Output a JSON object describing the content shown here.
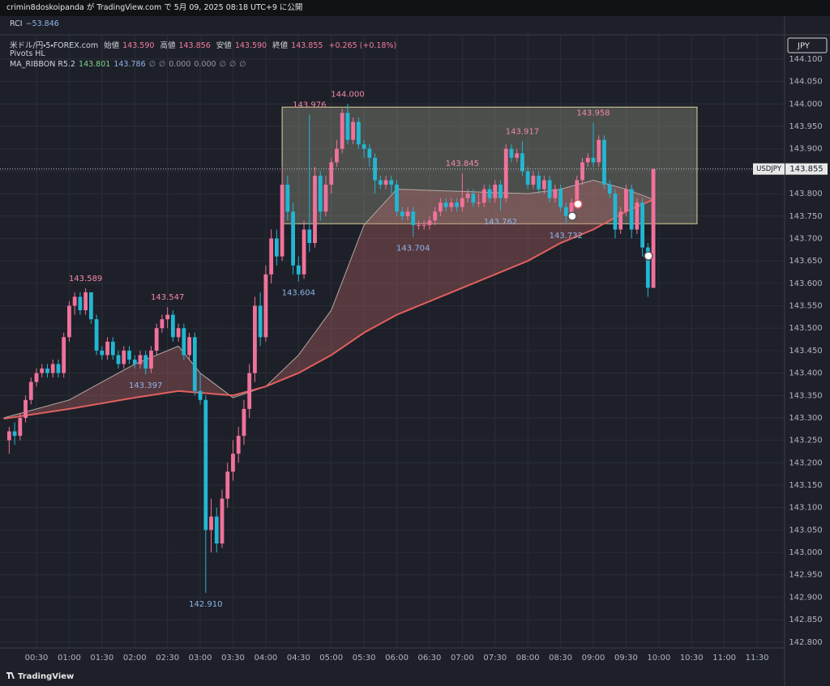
{
  "header": {
    "publisher_line": "crimin8doskoipanda が TradingView.com で 5月 09, 2025 08:18 UTC+9 に公開"
  },
  "legend": {
    "rci_name": "RCI",
    "rci_value": "−53.846",
    "symbol": "米ドル/円・5・FOREX.com",
    "o_label": "始値",
    "o": "143.590",
    "h_label": "高値",
    "h": "143.856",
    "l_label": "安値",
    "l": "143.590",
    "c_label": "終値",
    "c": "143.855",
    "change": "+0.265 (+0.18%)",
    "pivots": "Pivots HL",
    "ribbon": "MA_RIBBON R5.2",
    "ribbon_values": [
      "143.801",
      "143.786",
      "∅",
      "∅",
      "0.000",
      "0.000",
      "∅",
      "∅",
      "∅"
    ]
  },
  "footer": {
    "brand": "TradingView"
  },
  "chart_data": {
    "type": "candlestick",
    "currency": "JPY",
    "symbol": "USDJPY",
    "up_color": "#f0729b",
    "down_color": "#22b7d3",
    "grid": true,
    "xlim": [
      "00:00",
      "11:50"
    ],
    "ylim": [
      142.787,
      144.156
    ],
    "xticks": [
      "00:30",
      "01:00",
      "01:30",
      "02:00",
      "02:30",
      "03:00",
      "03:30",
      "04:00",
      "04:30",
      "05:00",
      "05:30",
      "06:00",
      "06:30",
      "07:00",
      "07:30",
      "08:00",
      "08:30",
      "09:00",
      "09:30",
      "10:00",
      "10:30",
      "11:00",
      "11:30"
    ],
    "yticks": [
      {
        "value": 144.1,
        "label": "144.100"
      },
      {
        "value": 144.05,
        "label": "144.050"
      },
      {
        "value": 144,
        "label": "144.000"
      },
      {
        "value": 143.95,
        "label": "143.950"
      },
      {
        "value": 143.9,
        "label": "143.900"
      },
      {
        "value": 143.85,
        "label": "143.850"
      },
      {
        "value": 143.8,
        "label": "143.800"
      },
      {
        "value": 143.75,
        "label": "143.750"
      },
      {
        "value": 143.7,
        "label": "143.700"
      },
      {
        "value": 143.65,
        "label": "143.650"
      },
      {
        "value": 143.6,
        "label": "143.600"
      },
      {
        "value": 143.55,
        "label": "143.550"
      },
      {
        "value": 143.5,
        "label": "143.500"
      },
      {
        "value": 143.45,
        "label": "143.450"
      },
      {
        "value": 143.4,
        "label": "143.400"
      },
      {
        "value": 143.35,
        "label": "143.350"
      },
      {
        "value": 143.3,
        "label": "143.300"
      },
      {
        "value": 143.25,
        "label": "143.250"
      },
      {
        "value": 143.2,
        "label": "143.200"
      },
      {
        "value": 143.15,
        "label": "143.150"
      },
      {
        "value": 143.1,
        "label": "143.100"
      },
      {
        "value": 143.05,
        "label": "143.050"
      },
      {
        "value": 143,
        "label": "143.000"
      },
      {
        "value": 142.95,
        "label": "142.950"
      },
      {
        "value": 142.9,
        "label": "142.900"
      },
      {
        "value": 142.85,
        "label": "142.850"
      },
      {
        "value": 142.8,
        "label": "142.800"
      }
    ],
    "x": [
      "00:05",
      "00:10",
      "00:15",
      "00:20",
      "00:25",
      "00:30",
      "00:35",
      "00:40",
      "00:45",
      "00:50",
      "00:55",
      "01:00",
      "01:05",
      "01:10",
      "01:15",
      "01:20",
      "01:25",
      "01:30",
      "01:35",
      "01:40",
      "01:45",
      "01:50",
      "01:55",
      "02:00",
      "02:05",
      "02:10",
      "02:15",
      "02:20",
      "02:25",
      "02:30",
      "02:35",
      "02:40",
      "02:45",
      "02:50",
      "02:55",
      "03:00",
      "03:05",
      "03:10",
      "03:15",
      "03:20",
      "03:25",
      "03:30",
      "03:35",
      "03:40",
      "03:45",
      "03:50",
      "03:55",
      "04:00",
      "04:05",
      "04:10",
      "04:15",
      "04:20",
      "04:25",
      "04:30",
      "04:35",
      "04:40",
      "04:45",
      "04:50",
      "04:55",
      "05:00",
      "05:05",
      "05:10",
      "05:15",
      "05:20",
      "05:25",
      "05:30",
      "05:35",
      "05:40",
      "05:45",
      "05:50",
      "05:55",
      "06:00",
      "06:05",
      "06:10",
      "06:15",
      "06:20",
      "06:25",
      "06:30",
      "06:35",
      "06:40",
      "06:45",
      "06:50",
      "06:55",
      "07:00",
      "07:05",
      "07:10",
      "07:15",
      "07:20",
      "07:25",
      "07:30",
      "07:35",
      "07:40",
      "07:45",
      "07:50",
      "07:55",
      "08:00",
      "08:05",
      "08:10",
      "08:15",
      "08:20",
      "08:25",
      "08:30",
      "08:35",
      "08:40",
      "08:45",
      "08:50",
      "08:55",
      "09:00",
      "09:05",
      "09:10",
      "09:15",
      "09:20",
      "09:25",
      "09:30",
      "09:35",
      "09:40",
      "09:45",
      "09:50",
      "09:55"
    ],
    "ohlc": [
      [
        143.25,
        143.28,
        143.22,
        143.27
      ],
      [
        143.27,
        143.29,
        143.24,
        143.26
      ],
      [
        143.26,
        143.31,
        143.25,
        143.3
      ],
      [
        143.3,
        143.35,
        143.29,
        143.34
      ],
      [
        143.34,
        143.39,
        143.33,
        143.38
      ],
      [
        143.38,
        143.41,
        143.37,
        143.4
      ],
      [
        143.4,
        143.42,
        143.39,
        143.41
      ],
      [
        143.41,
        143.42,
        143.39,
        143.4
      ],
      [
        143.4,
        143.43,
        143.39,
        143.42
      ],
      [
        143.42,
        143.43,
        143.39,
        143.4
      ],
      [
        143.4,
        143.49,
        143.39,
        143.48
      ],
      [
        143.48,
        143.56,
        143.47,
        143.55
      ],
      [
        143.55,
        143.58,
        143.53,
        143.57
      ],
      [
        143.57,
        143.58,
        143.53,
        143.54
      ],
      [
        143.54,
        143.589,
        143.53,
        143.58
      ],
      [
        143.58,
        143.58,
        143.51,
        143.52
      ],
      [
        143.52,
        143.53,
        143.44,
        143.45
      ],
      [
        143.45,
        143.46,
        143.43,
        143.44
      ],
      [
        143.44,
        143.48,
        143.43,
        143.47
      ],
      [
        143.47,
        143.48,
        143.43,
        143.44
      ],
      [
        143.44,
        143.45,
        143.41,
        143.42
      ],
      [
        143.42,
        143.46,
        143.41,
        143.45
      ],
      [
        143.45,
        143.46,
        143.42,
        143.43
      ],
      [
        143.43,
        143.44,
        143.41,
        143.42
      ],
      [
        143.42,
        143.45,
        143.41,
        143.44
      ],
      [
        143.44,
        143.45,
        143.397,
        143.41
      ],
      [
        143.41,
        143.46,
        143.4,
        143.45
      ],
      [
        143.45,
        143.51,
        143.44,
        143.5
      ],
      [
        143.5,
        143.53,
        143.49,
        143.52
      ],
      [
        143.52,
        143.547,
        143.5,
        143.53
      ],
      [
        143.53,
        143.54,
        143.47,
        143.48
      ],
      [
        143.48,
        143.51,
        143.47,
        143.5
      ],
      [
        143.5,
        143.51,
        143.43,
        143.44
      ],
      [
        143.44,
        143.49,
        143.43,
        143.48
      ],
      [
        143.48,
        143.49,
        143.35,
        143.36
      ],
      [
        143.36,
        143.4,
        143.33,
        143.34
      ],
      [
        143.34,
        143.35,
        142.91,
        143.05
      ],
      [
        143.05,
        143.12,
        143.0,
        143.08
      ],
      [
        143.08,
        143.1,
        143.0,
        143.02
      ],
      [
        143.02,
        143.14,
        143.01,
        143.12
      ],
      [
        143.12,
        143.2,
        143.1,
        143.18
      ],
      [
        143.18,
        143.25,
        143.16,
        143.22
      ],
      [
        143.22,
        143.28,
        143.2,
        143.26
      ],
      [
        143.26,
        143.34,
        143.24,
        143.32
      ],
      [
        143.32,
        143.42,
        143.3,
        143.4
      ],
      [
        143.4,
        143.57,
        143.38,
        143.55
      ],
      [
        143.55,
        143.58,
        143.46,
        143.48
      ],
      [
        143.48,
        143.64,
        143.47,
        143.62
      ],
      [
        143.62,
        143.72,
        143.6,
        143.7
      ],
      [
        143.7,
        143.72,
        143.64,
        143.66
      ],
      [
        143.66,
        143.86,
        143.65,
        143.82
      ],
      [
        143.82,
        143.84,
        143.74,
        143.76
      ],
      [
        143.76,
        143.78,
        143.62,
        143.64
      ],
      [
        143.64,
        143.66,
        143.604,
        143.62
      ],
      [
        143.62,
        143.74,
        143.61,
        143.72
      ],
      [
        143.72,
        143.976,
        143.67,
        143.69
      ],
      [
        143.69,
        143.86,
        143.68,
        143.84
      ],
      [
        143.84,
        143.85,
        143.74,
        143.76
      ],
      [
        143.76,
        143.84,
        143.75,
        143.82
      ],
      [
        143.82,
        143.88,
        143.8,
        143.87
      ],
      [
        143.87,
        143.92,
        143.86,
        143.9
      ],
      [
        143.9,
        143.99,
        143.89,
        143.98
      ],
      [
        143.98,
        144.0,
        143.91,
        143.92
      ],
      [
        143.92,
        143.97,
        143.91,
        143.96
      ],
      [
        143.96,
        143.97,
        143.9,
        143.91
      ],
      [
        143.91,
        143.92,
        143.88,
        143.9
      ],
      [
        143.9,
        143.91,
        143.86,
        143.88
      ],
      [
        143.88,
        143.89,
        143.8,
        143.83
      ],
      [
        143.83,
        143.84,
        143.81,
        143.82
      ],
      [
        143.82,
        143.84,
        143.81,
        143.83
      ],
      [
        143.83,
        143.84,
        143.8,
        143.82
      ],
      [
        143.82,
        143.83,
        143.75,
        143.76
      ],
      [
        143.76,
        143.77,
        143.74,
        143.75
      ],
      [
        143.75,
        143.77,
        143.74,
        143.76
      ],
      [
        143.76,
        143.77,
        143.704,
        143.73
      ],
      [
        143.73,
        143.74,
        143.72,
        143.73
      ],
      [
        143.73,
        143.74,
        143.72,
        143.73
      ],
      [
        143.73,
        143.75,
        143.72,
        143.74
      ],
      [
        143.74,
        143.77,
        143.73,
        143.76
      ],
      [
        143.76,
        143.79,
        143.75,
        143.78
      ],
      [
        143.78,
        143.79,
        143.76,
        143.77
      ],
      [
        143.77,
        143.79,
        143.76,
        143.78
      ],
      [
        143.78,
        143.79,
        143.76,
        143.77
      ],
      [
        143.77,
        143.845,
        143.76,
        143.79
      ],
      [
        143.79,
        143.81,
        143.78,
        143.8
      ],
      [
        143.8,
        143.81,
        143.77,
        143.78
      ],
      [
        143.78,
        143.8,
        143.77,
        143.78
      ],
      [
        143.78,
        143.82,
        143.77,
        143.81
      ],
      [
        143.81,
        143.82,
        143.78,
        143.79
      ],
      [
        143.79,
        143.83,
        143.78,
        143.82
      ],
      [
        143.82,
        143.83,
        143.762,
        143.79
      ],
      [
        143.79,
        143.91,
        143.78,
        143.9
      ],
      [
        143.9,
        143.91,
        143.87,
        143.88
      ],
      [
        143.88,
        143.9,
        143.87,
        143.89
      ],
      [
        143.89,
        143.917,
        143.84,
        143.85
      ],
      [
        143.85,
        143.86,
        143.81,
        143.82
      ],
      [
        143.82,
        143.85,
        143.81,
        143.84
      ],
      [
        143.84,
        143.85,
        143.8,
        143.81
      ],
      [
        143.81,
        143.84,
        143.8,
        143.83
      ],
      [
        143.83,
        143.84,
        143.78,
        143.79
      ],
      [
        143.79,
        143.82,
        143.78,
        143.81
      ],
      [
        143.81,
        143.82,
        143.76,
        143.77
      ],
      [
        143.77,
        143.78,
        143.732,
        143.75
      ],
      [
        143.75,
        143.79,
        143.74,
        143.78
      ],
      [
        143.78,
        143.84,
        143.77,
        143.83
      ],
      [
        143.83,
        143.88,
        143.82,
        143.87
      ],
      [
        143.87,
        143.89,
        143.86,
        143.88
      ],
      [
        143.88,
        143.958,
        143.86,
        143.87
      ],
      [
        143.87,
        143.93,
        143.86,
        143.92
      ],
      [
        143.92,
        143.93,
        143.81,
        143.82
      ],
      [
        143.82,
        143.83,
        143.79,
        143.8
      ],
      [
        143.8,
        143.81,
        143.7,
        143.72
      ],
      [
        143.72,
        143.77,
        143.71,
        143.76
      ],
      [
        143.76,
        143.82,
        143.75,
        143.81
      ],
      [
        143.81,
        143.82,
        143.7,
        143.72
      ],
      [
        143.72,
        143.79,
        143.71,
        143.78
      ],
      [
        143.78,
        143.79,
        143.66,
        143.68
      ],
      [
        143.68,
        143.69,
        143.57,
        143.59
      ],
      [
        143.59,
        143.856,
        143.59,
        143.855
      ]
    ],
    "pivot_labels": [
      null,
      null,
      null,
      null,
      null,
      null,
      null,
      null,
      null,
      null,
      null,
      null,
      null,
      null,
      "143.589",
      null,
      null,
      null,
      null,
      null,
      null,
      null,
      null,
      null,
      null,
      "143.397",
      null,
      null,
      null,
      "143.547",
      null,
      null,
      null,
      null,
      null,
      null,
      "142.910",
      null,
      null,
      null,
      null,
      null,
      null,
      null,
      null,
      null,
      null,
      null,
      null,
      null,
      null,
      null,
      null,
      "143.604",
      null,
      "143.976",
      null,
      null,
      null,
      null,
      null,
      null,
      "144.000",
      null,
      null,
      null,
      null,
      null,
      null,
      null,
      null,
      null,
      null,
      null,
      "143.704",
      null,
      null,
      null,
      null,
      null,
      null,
      null,
      null,
      "143.845",
      null,
      null,
      null,
      null,
      null,
      null,
      "143.762",
      null,
      null,
      null,
      "143.917",
      null,
      null,
      null,
      null,
      null,
      null,
      null,
      "143.732",
      null,
      null,
      null,
      null,
      "143.958",
      null,
      null,
      null,
      null,
      null,
      null,
      null,
      null,
      null,
      null,
      null
    ],
    "ma_fast": {
      "color": "#b3aaa4",
      "x": [
        "00:00",
        "01:00",
        "02:00",
        "02:40",
        "03:00",
        "03:30",
        "04:00",
        "04:30",
        "05:00",
        "05:30",
        "06:00",
        "07:00",
        "08:00",
        "08:30",
        "09:00",
        "09:30",
        "09:55"
      ],
      "values": [
        143.3,
        143.34,
        143.42,
        143.46,
        143.4,
        143.345,
        143.37,
        143.44,
        143.54,
        143.73,
        143.81,
        143.805,
        143.8,
        143.81,
        143.83,
        143.81,
        143.787
      ]
    },
    "ma_slow": {
      "color": "#e2605f",
      "x": [
        "00:00",
        "01:00",
        "02:00",
        "02:40",
        "03:30",
        "04:00",
        "04:30",
        "05:00",
        "05:30",
        "06:00",
        "07:00",
        "08:00",
        "08:30",
        "09:00",
        "09:30",
        "09:55"
      ],
      "values": [
        143.298,
        143.32,
        143.345,
        143.36,
        143.35,
        143.37,
        143.4,
        143.44,
        143.49,
        143.53,
        143.59,
        143.65,
        143.69,
        143.72,
        143.76,
        143.787
      ]
    },
    "range_box": {
      "x": [
        "04:15",
        "10:35"
      ],
      "y": [
        143.733,
        143.993
      ]
    }
  }
}
